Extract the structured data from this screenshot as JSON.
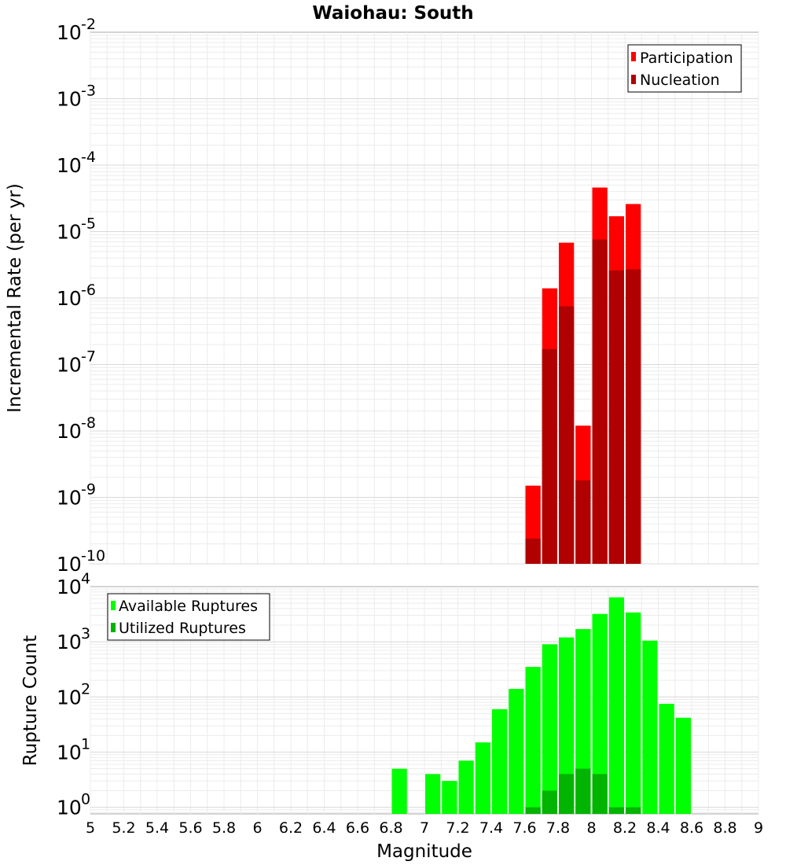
{
  "figure": {
    "title": "Waiohau: South",
    "xlabel": "Magnitude"
  },
  "chart_data": [
    {
      "type": "bar",
      "title": "Waiohau: South",
      "xlabel": "Magnitude",
      "ylabel": "Incremental Rate (per yr)",
      "yscale": "log",
      "xlim": [
        5,
        9
      ],
      "ylim_exponents": [
        -10,
        -2
      ],
      "ytick_exponents": [
        -10,
        -9,
        -8,
        -7,
        -6,
        -5,
        -4,
        -3,
        -2
      ],
      "ytick_base": "10",
      "bin_width": 0.1,
      "legend_position": "top-right",
      "series": [
        {
          "name": "Participation",
          "color": "#ff0000",
          "bins": [
            7.65,
            7.75,
            7.85,
            7.95,
            8.05,
            8.15,
            8.25
          ],
          "values": [
            1.5e-09,
            1.4e-06,
            6.8e-06,
            1.2e-08,
            4.6e-05,
            1.7e-05,
            2.6e-05
          ]
        },
        {
          "name": "Nucleation",
          "color": "#b00000",
          "bins": [
            7.65,
            7.75,
            7.85,
            7.95,
            8.05,
            8.15,
            8.25
          ],
          "values": [
            2.4e-10,
            1.7e-07,
            7.5e-07,
            1.8e-09,
            7.6e-06,
            2.6e-06,
            2.7e-06
          ]
        }
      ]
    },
    {
      "type": "bar",
      "title": "",
      "xlabel": "Magnitude",
      "ylabel": "Rupture Count",
      "yscale": "log",
      "xlim": [
        5,
        9
      ],
      "ylim_exponents": [
        -0.12,
        4
      ],
      "ytick_exponents": [
        0,
        1,
        2,
        3,
        4
      ],
      "ytick_base": "10",
      "xticks": [
        "5",
        "5.2",
        "5.4",
        "5.6",
        "5.8",
        "6",
        "6.2",
        "6.4",
        "6.6",
        "6.8",
        "7",
        "7.2",
        "7.4",
        "7.6",
        "7.8",
        "8",
        "8.2",
        "8.4",
        "8.6",
        "8.8",
        "9"
      ],
      "bin_width": 0.1,
      "legend_position": "top-left",
      "series": [
        {
          "name": "Available Ruptures",
          "color": "#00ff00",
          "bins": [
            6.85,
            7.05,
            7.15,
            7.25,
            7.35,
            7.45,
            7.55,
            7.65,
            7.75,
            7.85,
            7.95,
            8.05,
            8.15,
            8.25,
            8.35,
            8.45,
            8.55
          ],
          "values": [
            5,
            4,
            3,
            7,
            15,
            60,
            140,
            350,
            900,
            1200,
            1700,
            3200,
            6400,
            3400,
            1050,
            75,
            42
          ]
        },
        {
          "name": "Utilized Ruptures",
          "color": "#00b400",
          "bins": [
            7.65,
            7.75,
            7.85,
            7.95,
            8.05,
            8.15,
            8.25
          ],
          "values": [
            1,
            2,
            4,
            5,
            4,
            1,
            1
          ]
        }
      ]
    }
  ]
}
